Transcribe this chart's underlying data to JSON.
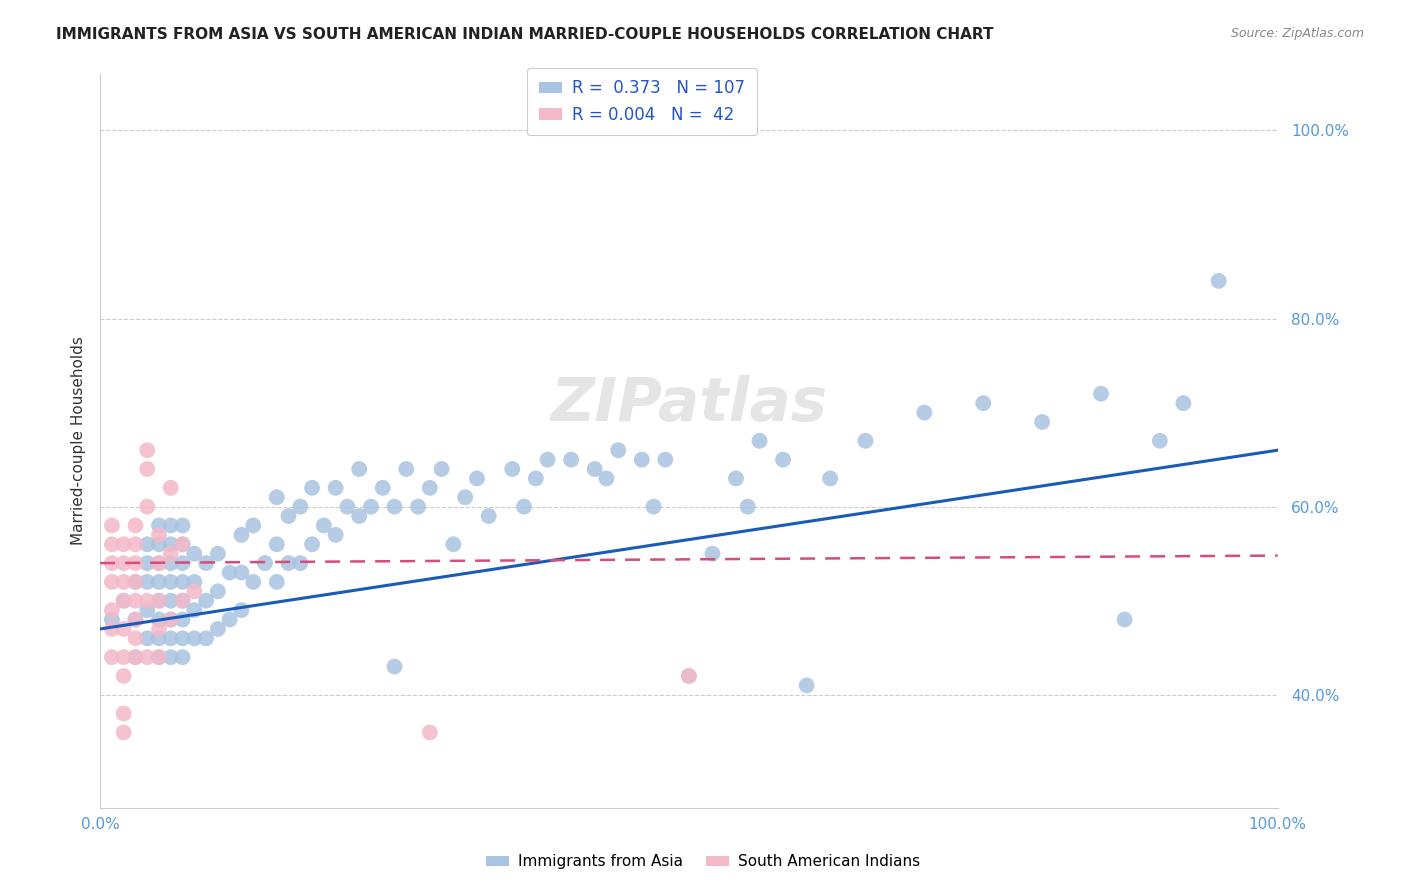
{
  "title": "IMMIGRANTS FROM ASIA VS SOUTH AMERICAN INDIAN MARRIED-COUPLE HOUSEHOLDS CORRELATION CHART",
  "source": "Source: ZipAtlas.com",
  "ylabel": "Married-couple Households",
  "legend_blue_R": "0.373",
  "legend_blue_N": "107",
  "legend_pink_R": "0.004",
  "legend_pink_N": "42",
  "legend_blue_label": "Immigrants from Asia",
  "legend_pink_label": "South American Indians",
  "watermark": "ZIPatlas",
  "blue_color": "#a8c4e0",
  "pink_color": "#f4b8c8",
  "line_blue_color": "#1a5cb5",
  "line_pink_color": "#d64c7a",
  "background": "#ffffff",
  "grid_color": "#cccccc",
  "tick_color": "#5599dd",
  "blue_line_x0": 0.0,
  "blue_line_y0": 0.47,
  "blue_line_x1": 1.0,
  "blue_line_y1": 0.66,
  "pink_line_x0": 0.0,
  "pink_line_y0": 0.54,
  "pink_line_x1": 1.0,
  "pink_line_y1": 0.548,
  "ylim_min": 0.28,
  "ylim_max": 1.06,
  "xlim_min": 0.0,
  "xlim_max": 1.0,
  "blue_scatter_x": [
    0.01,
    0.02,
    0.03,
    0.03,
    0.03,
    0.04,
    0.04,
    0.04,
    0.04,
    0.04,
    0.05,
    0.05,
    0.05,
    0.05,
    0.05,
    0.05,
    0.05,
    0.05,
    0.06,
    0.06,
    0.06,
    0.06,
    0.06,
    0.06,
    0.06,
    0.06,
    0.07,
    0.07,
    0.07,
    0.07,
    0.07,
    0.07,
    0.07,
    0.07,
    0.08,
    0.08,
    0.08,
    0.08,
    0.09,
    0.09,
    0.09,
    0.1,
    0.1,
    0.1,
    0.11,
    0.11,
    0.12,
    0.12,
    0.12,
    0.13,
    0.13,
    0.14,
    0.15,
    0.15,
    0.15,
    0.16,
    0.16,
    0.17,
    0.17,
    0.18,
    0.18,
    0.19,
    0.2,
    0.2,
    0.21,
    0.22,
    0.22,
    0.23,
    0.24,
    0.25,
    0.25,
    0.26,
    0.27,
    0.28,
    0.29,
    0.3,
    0.31,
    0.32,
    0.33,
    0.35,
    0.36,
    0.37,
    0.38,
    0.4,
    0.42,
    0.43,
    0.44,
    0.46,
    0.47,
    0.48,
    0.5,
    0.52,
    0.54,
    0.55,
    0.56,
    0.58,
    0.6,
    0.62,
    0.65,
    0.7,
    0.75,
    0.8,
    0.85,
    0.87,
    0.9,
    0.92,
    0.95
  ],
  "blue_scatter_y": [
    0.48,
    0.5,
    0.44,
    0.48,
    0.52,
    0.46,
    0.49,
    0.52,
    0.54,
    0.56,
    0.44,
    0.46,
    0.48,
    0.5,
    0.52,
    0.54,
    0.56,
    0.58,
    0.44,
    0.46,
    0.48,
    0.5,
    0.52,
    0.54,
    0.56,
    0.58,
    0.44,
    0.46,
    0.48,
    0.5,
    0.52,
    0.54,
    0.56,
    0.58,
    0.46,
    0.49,
    0.52,
    0.55,
    0.46,
    0.5,
    0.54,
    0.47,
    0.51,
    0.55,
    0.48,
    0.53,
    0.49,
    0.53,
    0.57,
    0.52,
    0.58,
    0.54,
    0.52,
    0.56,
    0.61,
    0.54,
    0.59,
    0.54,
    0.6,
    0.56,
    0.62,
    0.58,
    0.57,
    0.62,
    0.6,
    0.59,
    0.64,
    0.6,
    0.62,
    0.43,
    0.6,
    0.64,
    0.6,
    0.62,
    0.64,
    0.56,
    0.61,
    0.63,
    0.59,
    0.64,
    0.6,
    0.63,
    0.65,
    0.65,
    0.64,
    0.63,
    0.66,
    0.65,
    0.6,
    0.65,
    0.42,
    0.55,
    0.63,
    0.6,
    0.67,
    0.65,
    0.41,
    0.63,
    0.67,
    0.7,
    0.71,
    0.69,
    0.72,
    0.48,
    0.67,
    0.71,
    0.84
  ],
  "pink_scatter_x": [
    0.01,
    0.01,
    0.01,
    0.01,
    0.01,
    0.01,
    0.01,
    0.02,
    0.02,
    0.02,
    0.02,
    0.02,
    0.02,
    0.02,
    0.02,
    0.02,
    0.03,
    0.03,
    0.03,
    0.03,
    0.03,
    0.03,
    0.03,
    0.03,
    0.04,
    0.04,
    0.04,
    0.04,
    0.04,
    0.05,
    0.05,
    0.05,
    0.05,
    0.05,
    0.06,
    0.06,
    0.06,
    0.07,
    0.07,
    0.08,
    0.28,
    0.5
  ],
  "pink_scatter_y": [
    0.44,
    0.47,
    0.49,
    0.52,
    0.54,
    0.56,
    0.58,
    0.36,
    0.38,
    0.42,
    0.44,
    0.47,
    0.5,
    0.52,
    0.54,
    0.56,
    0.44,
    0.46,
    0.48,
    0.5,
    0.52,
    0.54,
    0.56,
    0.58,
    0.44,
    0.5,
    0.6,
    0.64,
    0.66,
    0.44,
    0.47,
    0.5,
    0.54,
    0.57,
    0.48,
    0.55,
    0.62,
    0.5,
    0.56,
    0.51,
    0.36,
    0.42
  ]
}
